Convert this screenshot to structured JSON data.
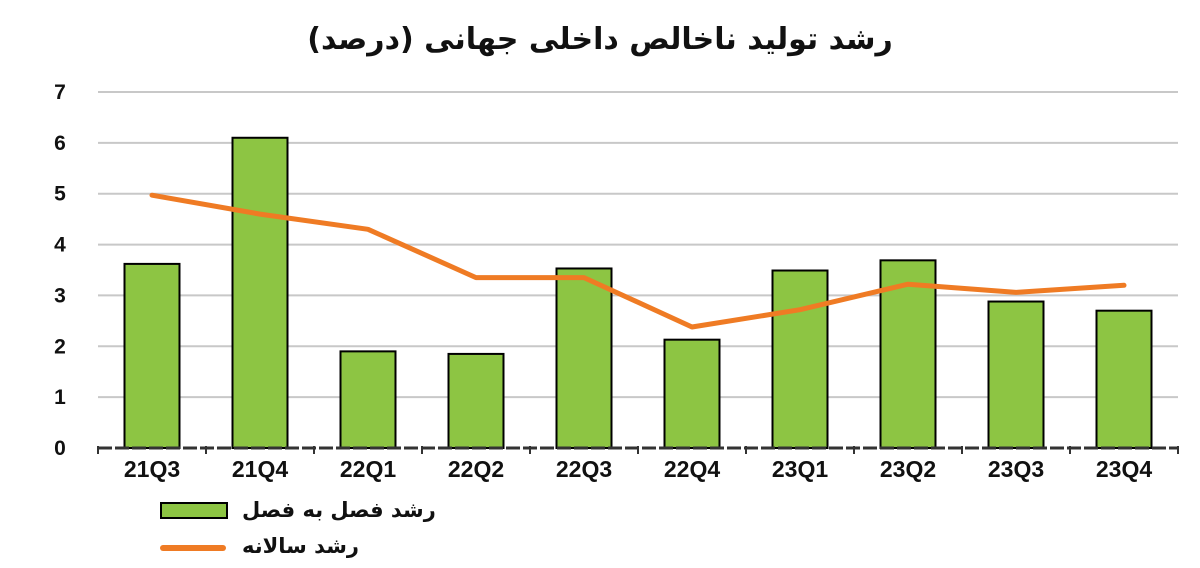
{
  "chart_data": {
    "type": "bar",
    "title": "رشد تولید ناخالص داخلی جهانی (درصد)",
    "categories": [
      "21Q3",
      "21Q4",
      "22Q1",
      "22Q2",
      "22Q3",
      "22Q4",
      "23Q1",
      "23Q2",
      "23Q3",
      "23Q4"
    ],
    "series": [
      {
        "name": "رشد فصل به فصل",
        "kind": "bar",
        "color": "#8dc543",
        "values": [
          3.62,
          6.1,
          1.9,
          1.85,
          3.53,
          2.13,
          3.49,
          3.69,
          2.88,
          2.7
        ]
      },
      {
        "name": "رشد سالانه",
        "kind": "line",
        "color": "#ef7b24",
        "values": [
          4.97,
          4.6,
          4.3,
          3.35,
          3.35,
          2.38,
          2.72,
          3.22,
          3.06,
          3.2
        ]
      }
    ],
    "yticks": [
      0,
      1,
      2,
      3,
      4,
      5,
      6,
      7
    ],
    "ylim": [
      0,
      7
    ],
    "grid": true,
    "legend_position": "bottom-left",
    "xlabel": "",
    "ylabel": ""
  }
}
